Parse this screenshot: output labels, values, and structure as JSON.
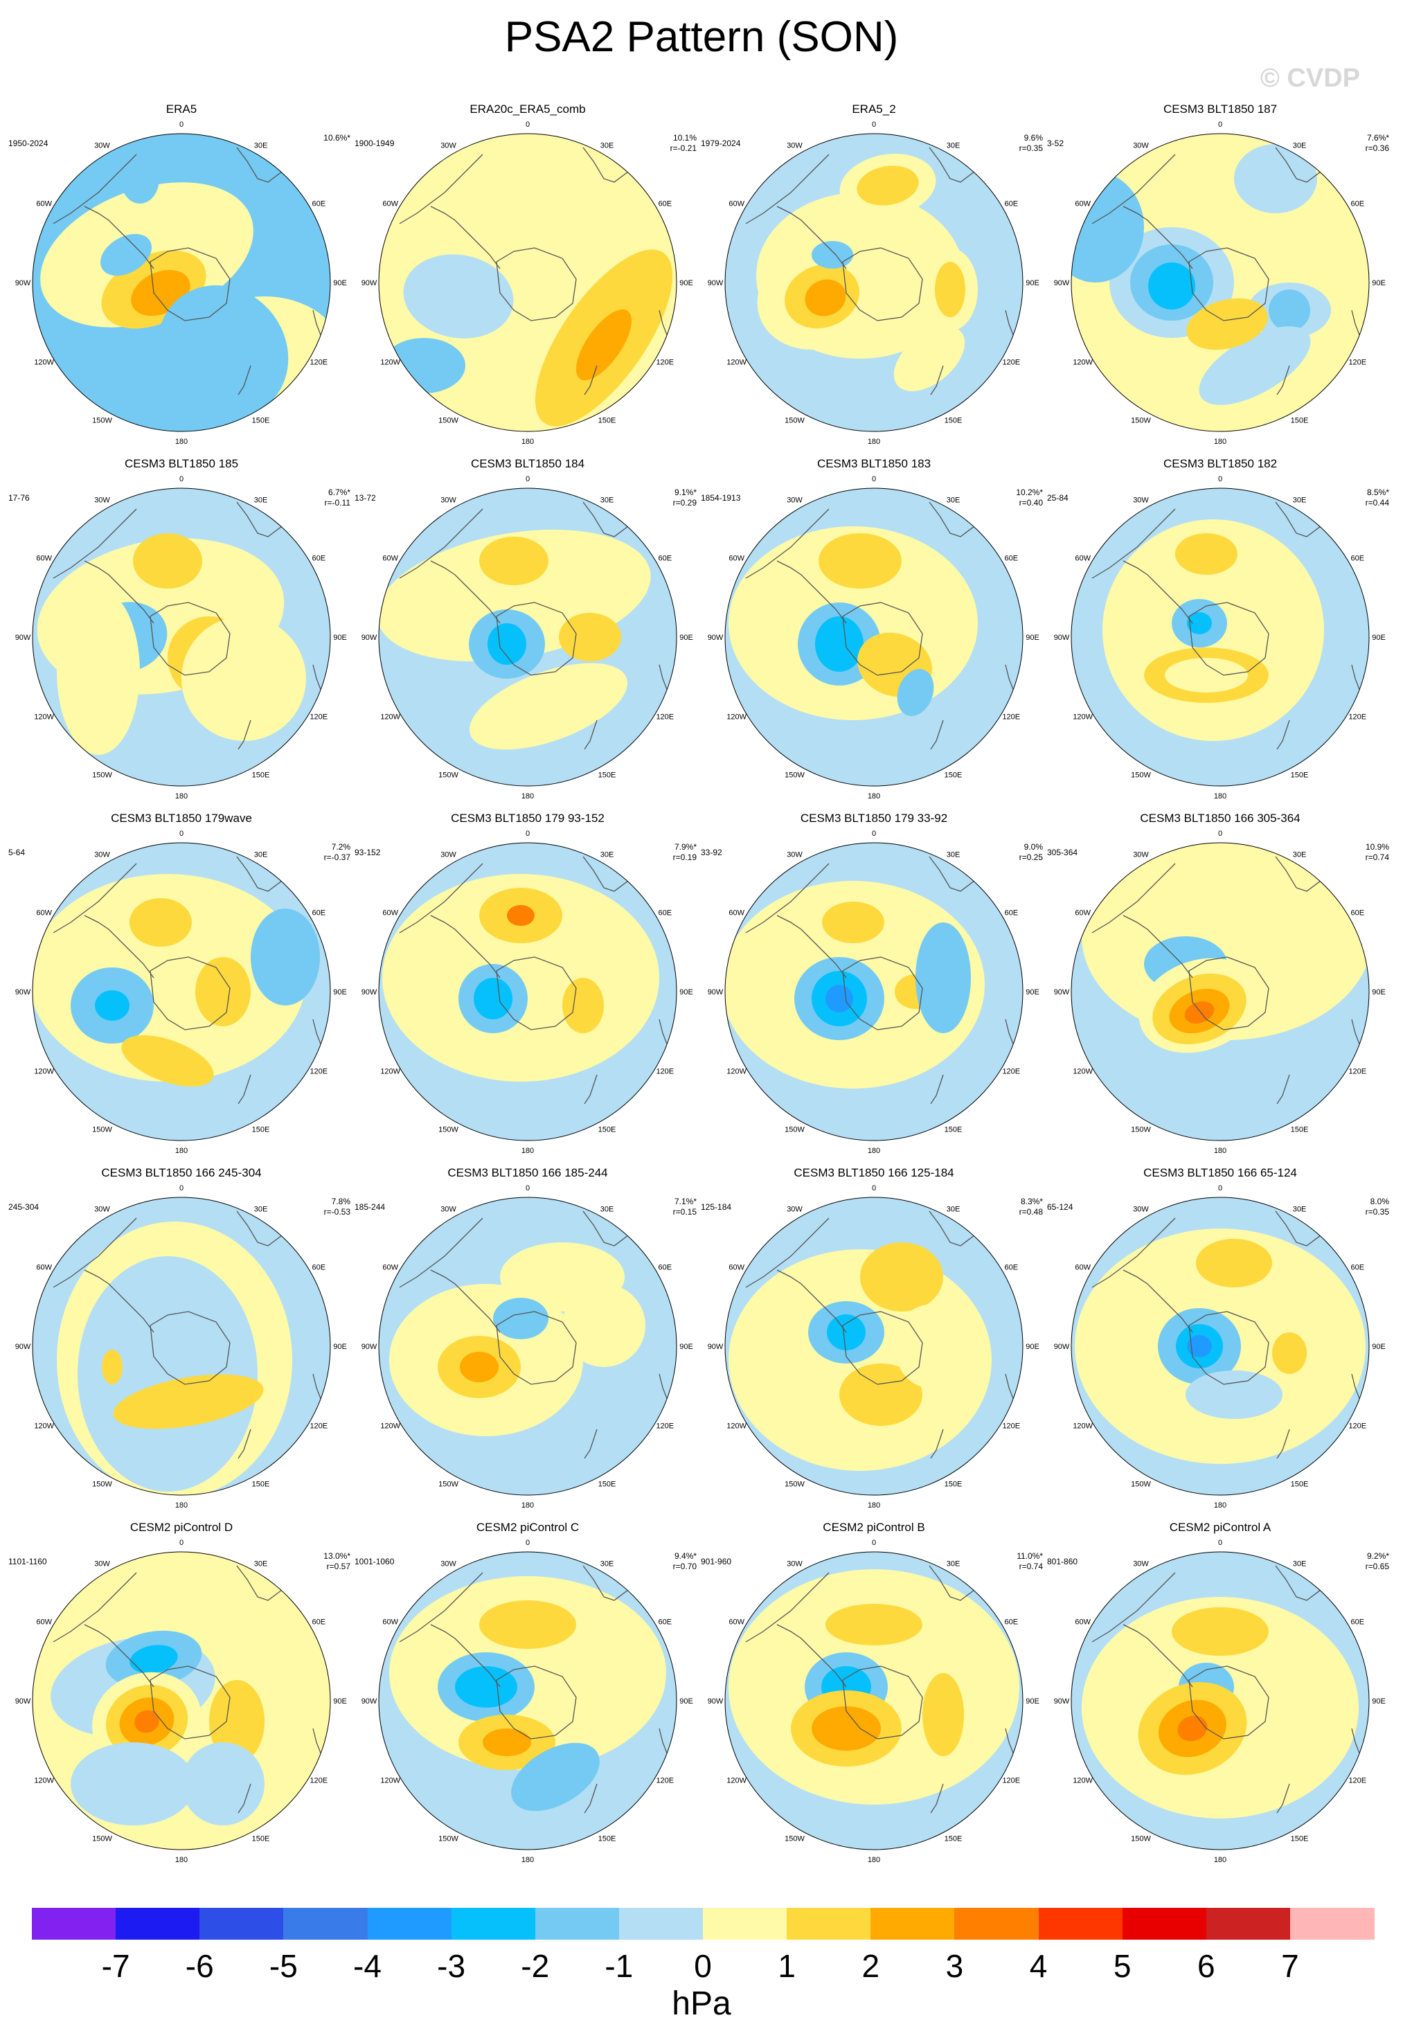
{
  "title": "PSA2 Pattern (SON)",
  "watermark": "© CVDP",
  "longitude_labels": [
    "0",
    "30E",
    "60E",
    "90E",
    "120E",
    "150E",
    "180",
    "150W",
    "120W",
    "90W",
    "60W",
    "30W"
  ],
  "panels": [
    {
      "title": "ERA5",
      "period": "1950-2024",
      "pct": "10.6%*",
      "r": ""
    },
    {
      "title": "ERA20c_ERA5_comb",
      "period": "1900-1949",
      "pct": "10.1%",
      "r": "r=-0.21"
    },
    {
      "title": "ERA5_2",
      "period": "1979-2024",
      "pct": "9.6%",
      "r": "r=0.35"
    },
    {
      "title": "CESM3 BLT1850 187",
      "period": "3-52",
      "pct": "7.6%*",
      "r": "r=0.36"
    },
    {
      "title": "CESM3 BLT1850 185",
      "period": "17-76",
      "pct": "6.7%*",
      "r": "r=-0.11"
    },
    {
      "title": "CESM3 BLT1850 184",
      "period": "13-72",
      "pct": "9.1%*",
      "r": "r=0.29"
    },
    {
      "title": "CESM3 BLT1850 183",
      "period": "1854-1913",
      "pct": "10.2%*",
      "r": "r=0.40"
    },
    {
      "title": "CESM3 BLT1850 182",
      "period": "25-84",
      "pct": "8.5%*",
      "r": "r=0.44"
    },
    {
      "title": "CESM3 BLT1850 179wave",
      "period": "5-64",
      "pct": "7.2%",
      "r": "r=-0.37"
    },
    {
      "title": "CESM3 BLT1850 179 93-152",
      "period": "93-152",
      "pct": "7.9%*",
      "r": "r=0.19"
    },
    {
      "title": "CESM3 BLT1850 179 33-92",
      "period": "33-92",
      "pct": "9.0%",
      "r": "r=0.25"
    },
    {
      "title": "CESM3 BLT1850 166 305-364",
      "period": "305-364",
      "pct": "10.9%",
      "r": "r=0.74"
    },
    {
      "title": "CESM3 BLT1850 166 245-304",
      "period": "245-304",
      "pct": "7.8%",
      "r": "r=-0.53"
    },
    {
      "title": "CESM3 BLT1850 166 185-244",
      "period": "185-244",
      "pct": "7.1%*",
      "r": "r=0.15"
    },
    {
      "title": "CESM3 BLT1850 166 125-184",
      "period": "125-184",
      "pct": "8.3%*",
      "r": "r=0.48"
    },
    {
      "title": "CESM3 BLT1850 166 65-124",
      "period": "65-124",
      "pct": "8.0%",
      "r": "r=0.35"
    },
    {
      "title": "CESM2 piControl D",
      "period": "1101-1160",
      "pct": "13.0%*",
      "r": "r=0.57"
    },
    {
      "title": "CESM2 piControl C",
      "period": "1001-1060",
      "pct": "9.4%*",
      "r": "r=0.70"
    },
    {
      "title": "CESM2 piControl B",
      "period": "901-960",
      "pct": "11.0%*",
      "r": "r=0.74"
    },
    {
      "title": "CESM2 piControl A",
      "period": "801-860",
      "pct": "9.2%*",
      "r": "r=0.65"
    }
  ],
  "colorbar": {
    "unit": "hPa",
    "ticks": [
      "-7",
      "-6",
      "-5",
      "-4",
      "-3",
      "-2",
      "-1",
      "0",
      "1",
      "2",
      "3",
      "4",
      "5",
      "6",
      "7"
    ],
    "colors": [
      "#8122f0",
      "#1b1bf2",
      "#2e4ee8",
      "#3a7bea",
      "#1f9bff",
      "#06c0fc",
      "#74caf2",
      "#b3def4",
      "#fffaa8",
      "#fed93e",
      "#ffaa00",
      "#ff7f00",
      "#fe3700",
      "#e80000",
      "#cc2222",
      "#ffb6b6"
    ]
  }
}
